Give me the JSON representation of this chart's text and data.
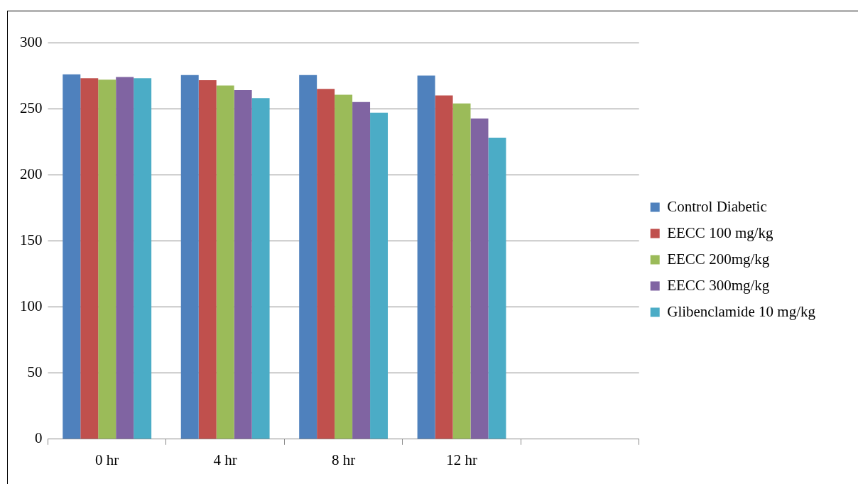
{
  "chart_data": {
    "type": "bar",
    "categories": [
      "0 hr",
      "4 hr",
      "8 hr",
      "12 hr",
      null
    ],
    "series": [
      {
        "name": "Control Diabetic",
        "color": "#4f81bd",
        "values": [
          276,
          275.5,
          275.5,
          275,
          null
        ]
      },
      {
        "name": "EECC 100 mg/kg",
        "color": "#c0504d",
        "values": [
          273,
          271.5,
          265,
          260,
          null
        ]
      },
      {
        "name": "EECC 200mg/kg",
        "color": "#9bbb59",
        "values": [
          272,
          267.5,
          260.5,
          254,
          null
        ]
      },
      {
        "name": "EECC 300mg/kg",
        "color": "#8064a2",
        "values": [
          274,
          264,
          255,
          242.5,
          null
        ]
      },
      {
        "name": "Glibenclamide 10 mg/kg",
        "color": "#4bacc6",
        "values": [
          273,
          258,
          247,
          228,
          null
        ]
      }
    ],
    "ylim": [
      0,
      300
    ],
    "yticks": [
      0,
      50,
      100,
      150,
      200,
      250,
      300
    ],
    "grid": "y",
    "legend": "right"
  }
}
